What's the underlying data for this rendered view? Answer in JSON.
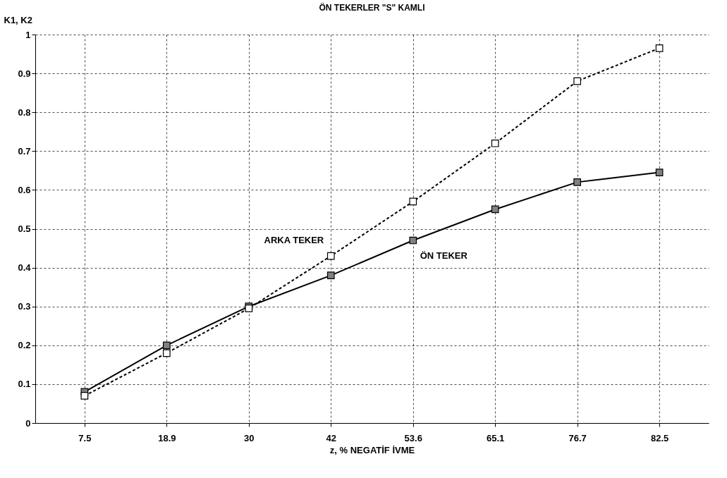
{
  "chart_data": {
    "type": "line",
    "title": "ÖN TEKERLER \"S\" KAMLI",
    "xlabel": "z, % NEGATİF İVME",
    "ylabel": "K1, K2",
    "categories": [
      "7.5",
      "18.9",
      "30",
      "42",
      "53.6",
      "65.1",
      "76.7",
      "82.5"
    ],
    "series": [
      {
        "name": "ÖN TEKER",
        "color": "#808080",
        "line_style": "solid",
        "values": [
          0.08,
          0.2,
          0.3,
          0.38,
          0.47,
          0.55,
          0.62,
          0.645
        ]
      },
      {
        "name": "ARKA TEKER",
        "color": "#ffffff",
        "line_style": "dashed",
        "values": [
          0.07,
          0.18,
          0.295,
          0.43,
          0.57,
          0.72,
          0.88,
          0.965
        ]
      }
    ],
    "ylim": [
      0,
      1
    ],
    "yticks": [
      0,
      0.1,
      0.2,
      0.3,
      0.4,
      0.5,
      0.6,
      0.7,
      0.8,
      0.9,
      1
    ],
    "grid": true,
    "marker": "square"
  }
}
